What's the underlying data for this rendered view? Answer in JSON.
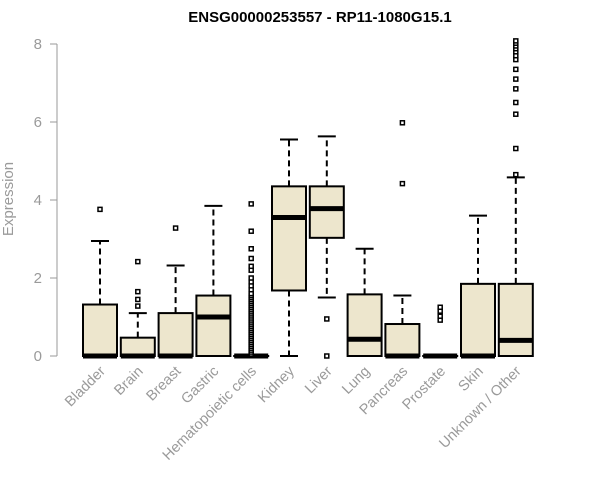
{
  "chart_data": {
    "type": "boxplot",
    "title": "ENSG00000253557 - RP11-1080G15.1",
    "ylabel": "Expression",
    "xlabel": "",
    "ylim": [
      0,
      8
    ],
    "yticks": [
      0,
      2,
      4,
      6,
      8
    ],
    "box_fill": "#ede6cd",
    "categories": [
      "Bladder",
      "Brain",
      "Breast",
      "Gastric",
      "Hematopoietic cells",
      "Kidney",
      "Liver",
      "Lung",
      "Pancreas",
      "Prostate",
      "Skin",
      "Unknown / Other"
    ],
    "boxes": [
      {
        "name": "Bladder",
        "whisker_low": 0,
        "q1": 0,
        "median": 0,
        "q3": 1.32,
        "whisker_high": 2.95,
        "outliers": [
          3.76
        ]
      },
      {
        "name": "Brain",
        "whisker_low": 0,
        "q1": 0,
        "median": 0,
        "q3": 0.47,
        "whisker_high": 1.1,
        "outliers": [
          1.28,
          1.45,
          1.65,
          2.42
        ]
      },
      {
        "name": "Breast",
        "whisker_low": 0,
        "q1": 0,
        "median": 0,
        "q3": 1.1,
        "whisker_high": 2.32,
        "outliers": [
          3.28
        ]
      },
      {
        "name": "Gastric",
        "whisker_low": 0,
        "q1": 0,
        "median": 1.0,
        "q3": 1.55,
        "whisker_high": 3.85,
        "outliers": []
      },
      {
        "name": "Hematopoietic cells",
        "whisker_low": 0,
        "q1": 0,
        "median": 0,
        "q3": 0,
        "whisker_high": 0,
        "outliers": [
          0.05,
          0.1,
          0.15,
          0.2,
          0.25,
          0.3,
          0.35,
          0.4,
          0.45,
          0.5,
          0.55,
          0.6,
          0.65,
          0.7,
          0.75,
          0.8,
          0.85,
          0.9,
          0.95,
          1.0,
          1.05,
          1.1,
          1.15,
          1.2,
          1.25,
          1.3,
          1.35,
          1.4,
          1.45,
          1.5,
          1.55,
          1.6,
          1.7,
          1.8,
          1.9,
          2.0,
          2.2,
          2.3,
          2.5,
          2.75,
          3.2,
          3.9
        ]
      },
      {
        "name": "Kidney",
        "whisker_low": 0,
        "q1": 1.68,
        "median": 3.55,
        "q3": 4.35,
        "whisker_high": 5.55,
        "outliers": []
      },
      {
        "name": "Liver",
        "whisker_low": 1.5,
        "q1": 3.03,
        "median": 3.78,
        "q3": 4.35,
        "whisker_high": 5.63,
        "outliers": [
          0.0,
          0.95
        ]
      },
      {
        "name": "Lung",
        "whisker_low": 0,
        "q1": 0,
        "median": 0.43,
        "q3": 1.58,
        "whisker_high": 2.75,
        "outliers": []
      },
      {
        "name": "Pancreas",
        "whisker_low": 0,
        "q1": 0,
        "median": 0,
        "q3": 0.82,
        "whisker_high": 1.55,
        "outliers": [
          4.42,
          5.98
        ]
      },
      {
        "name": "Prostate",
        "whisker_low": 0,
        "q1": 0,
        "median": 0,
        "q3": 0,
        "whisker_high": 0,
        "outliers": [
          0.92,
          1.02,
          1.15,
          1.25
        ]
      },
      {
        "name": "Skin",
        "whisker_low": 0,
        "q1": 0,
        "median": 0,
        "q3": 1.85,
        "whisker_high": 3.6,
        "outliers": []
      },
      {
        "name": "Unknown / Other",
        "whisker_low": 0,
        "q1": 0,
        "median": 0.4,
        "q3": 1.85,
        "whisker_high": 4.58,
        "outliers": [
          4.65,
          5.32,
          6.2,
          6.5,
          6.85,
          7.1,
          7.35,
          7.6,
          7.7,
          7.8,
          7.88,
          7.95,
          8.02,
          8.08
        ]
      }
    ]
  }
}
